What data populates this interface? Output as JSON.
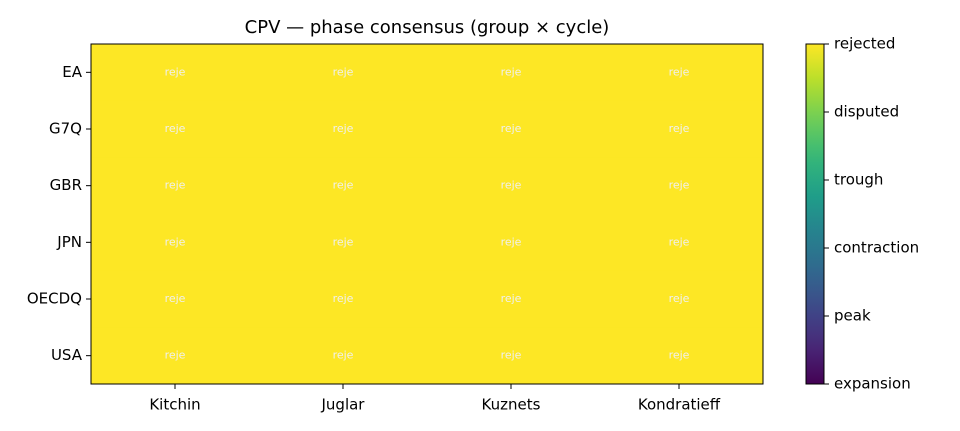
{
  "chart_data": {
    "type": "heatmap",
    "title": "CPV — phase consensus (group × cycle)",
    "x": [
      "Kitchin",
      "Juglar",
      "Kuznets",
      "Kondratieff"
    ],
    "y": [
      "EA",
      "G7Q",
      "GBR",
      "JPN",
      "OECDQ",
      "USA"
    ],
    "values": [
      [
        5,
        5,
        5,
        5
      ],
      [
        5,
        5,
        5,
        5
      ],
      [
        5,
        5,
        5,
        5
      ],
      [
        5,
        5,
        5,
        5
      ],
      [
        5,
        5,
        5,
        5
      ],
      [
        5,
        5,
        5,
        5
      ]
    ],
    "value_labels": [
      [
        "reje",
        "reje",
        "reje",
        "reje"
      ],
      [
        "reje",
        "reje",
        "reje",
        "reje"
      ],
      [
        "reje",
        "reje",
        "reje",
        "reje"
      ],
      [
        "reje",
        "reje",
        "reje",
        "reje"
      ],
      [
        "reje",
        "reje",
        "reje",
        "reje"
      ],
      [
        "reje",
        "reje",
        "reje",
        "reje"
      ]
    ],
    "colormap": "viridis",
    "clim": [
      0,
      5
    ],
    "cticks": [
      {
        "value": 0,
        "label": "expansion"
      },
      {
        "value": 1,
        "label": "peak"
      },
      {
        "value": 2,
        "label": "contraction"
      },
      {
        "value": 3,
        "label": "trough"
      },
      {
        "value": 4,
        "label": "disputed"
      },
      {
        "value": 5,
        "label": "rejected"
      }
    ]
  }
}
